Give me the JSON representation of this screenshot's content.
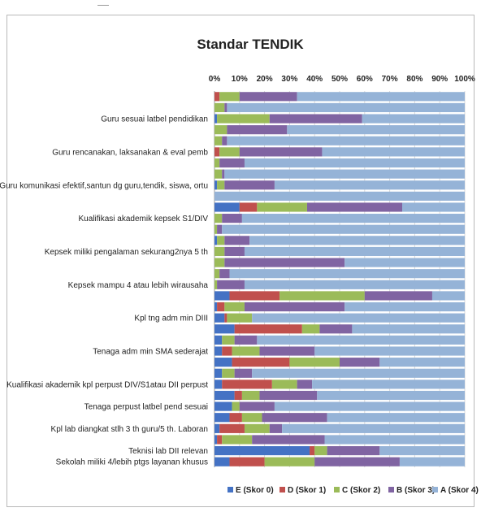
{
  "chart_data": {
    "type": "bar",
    "orientation": "horizontal",
    "stacked": "percent",
    "title": "Standar TENDIK",
    "xlim": [
      0,
      100
    ],
    "x_ticks": [
      "0%",
      "10%",
      "20%",
      "30%",
      "40%",
      "50%",
      "60%",
      "70%",
      "80%",
      "90%",
      "100%"
    ],
    "grid": true,
    "legend_position": "bottom",
    "bar_count": 34,
    "category_labels": [
      {
        "label": "Guru sesuai latbel pendidikan",
        "bar": 3
      },
      {
        "label": "Guru rencanakan, laksanakan & eval pemb",
        "bar": 6
      },
      {
        "label": "Guru komunikasi efektif,santun dg guru,tendik, siswa, ortu",
        "bar": 9
      },
      {
        "label": "Kualifikasi akademik kepsek S1/DIV",
        "bar": 12
      },
      {
        "label": "Kepsek miliki pengalaman sekurang2nya 5 th",
        "bar": 15
      },
      {
        "label": "Kepsek mampu 4 atau lebih wirausaha",
        "bar": 18
      },
      {
        "label": "Kpl tng adm min DIII",
        "bar": 21
      },
      {
        "label": "Tenaga adm min SMA sederajat",
        "bar": 24
      },
      {
        "label": "Kualifikasi akademik kpl perpust DIV/S1atau DII perpust",
        "bar": 27
      },
      {
        "label": "Tenaga perpust latbel pend sesuai",
        "bar": 29
      },
      {
        "label": "Kpl lab diangkat stlh 3 th guru/5 th. Laboran",
        "bar": 31
      },
      {
        "label": "Teknisi lab DII relevan",
        "bar": 33
      },
      {
        "label": "Sekolah miliki 4/lebih ptgs layanan khusus",
        "bar": 34
      }
    ],
    "series": [
      {
        "name": "E (Skor 0)",
        "color": "#4472c4",
        "values": [
          0,
          0,
          1,
          0,
          0,
          0,
          0,
          0,
          1,
          0,
          10,
          0,
          0,
          1,
          0,
          0,
          0,
          0,
          6,
          1,
          4,
          8,
          3,
          3,
          7,
          3,
          3,
          8,
          7,
          6,
          2,
          1,
          38,
          6
        ]
      },
      {
        "name": "D (Skor 1)",
        "color": "#c0504d",
        "values": [
          2,
          0,
          0,
          0,
          0,
          2,
          0,
          0,
          0,
          0,
          7,
          0,
          0,
          0,
          0,
          0,
          0,
          0,
          20,
          3,
          1,
          27,
          0,
          4,
          23,
          0,
          20,
          3,
          0,
          5,
          10,
          2,
          2,
          14
        ]
      },
      {
        "name": "C (Skor 2)",
        "color": "#9bbb59",
        "values": [
          8,
          4,
          21,
          5,
          3,
          8,
          2,
          3,
          3,
          0,
          20,
          3,
          1,
          3,
          4,
          4,
          2,
          1,
          34,
          8,
          10,
          7,
          5,
          11,
          20,
          5,
          10,
          7,
          3,
          8,
          10,
          12,
          5,
          20
        ]
      },
      {
        "name": "B (Skor 3)",
        "color": "#8064a2",
        "values": [
          23,
          1,
          37,
          24,
          2,
          33,
          10,
          1,
          20,
          0,
          38,
          8,
          2,
          10,
          8,
          48,
          4,
          11,
          27,
          40,
          0,
          13,
          9,
          22,
          16,
          7,
          6,
          23,
          14,
          26,
          5,
          29,
          21,
          34
        ]
      },
      {
        "name": "A (Skor 4)",
        "color": "#95b3d7",
        "values": [
          67,
          95,
          41,
          71,
          95,
          57,
          88,
          96,
          76,
          100,
          25,
          89,
          97,
          86,
          88,
          48,
          94,
          88,
          13,
          48,
          85,
          45,
          83,
          60,
          34,
          85,
          61,
          59,
          76,
          55,
          73,
          56,
          34,
          26
        ]
      }
    ]
  }
}
